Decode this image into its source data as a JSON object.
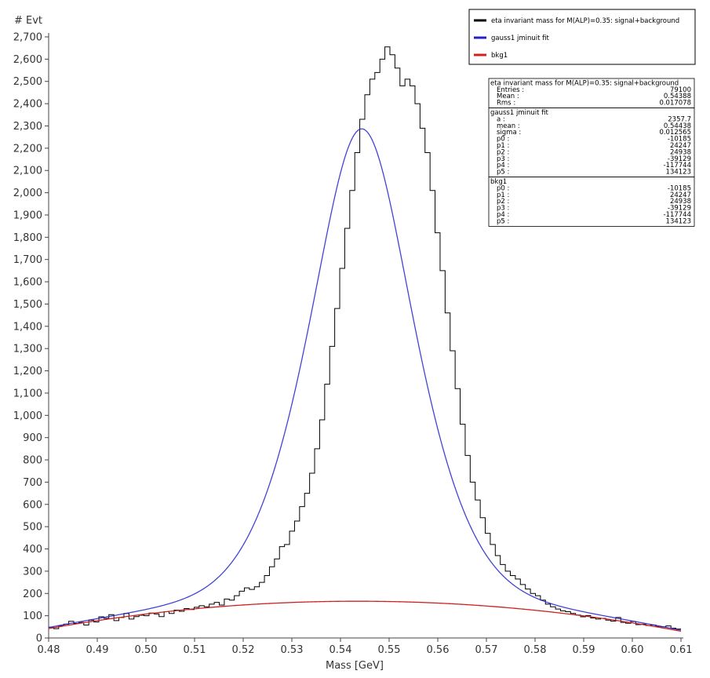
{
  "chart_data": {
    "type": "histogram",
    "title": "",
    "xlabel": "Mass   [GeV]",
    "ylabel": "# Evt",
    "xlim": [
      0.48,
      0.61
    ],
    "ylim": [
      0,
      2700
    ],
    "x_ticks": [
      0.48,
      0.49,
      0.5,
      0.51,
      0.52,
      0.53,
      0.54,
      0.55,
      0.56,
      0.57,
      0.58,
      0.59,
      0.6,
      0.61
    ],
    "x_tick_labels": [
      "0.48",
      "0.49",
      "0.50",
      "0.51",
      "0.52",
      "0.53",
      "0.54",
      "0.55",
      "0.56",
      "0.57",
      "0.58",
      "0.59",
      "0.60",
      "0.61"
    ],
    "y_ticks": [
      0,
      100,
      200,
      300,
      400,
      500,
      600,
      700,
      800,
      900,
      1000,
      1100,
      1200,
      1300,
      1400,
      1500,
      1600,
      1700,
      1800,
      1900,
      2000,
      2100,
      2200,
      2300,
      2400,
      2500,
      2600,
      2700
    ],
    "y_tick_labels": [
      "0",
      "100",
      "200",
      "300",
      "400",
      "500",
      "600",
      "700",
      "800",
      "900",
      "1,000",
      "1,100",
      "1,200",
      "1,300",
      "1,400",
      "1,500",
      "1,600",
      "1,700",
      "1,800",
      "1,900",
      "2,000",
      "2,100",
      "2,200",
      "2,300",
      "2,400",
      "2,500",
      "2,600",
      "2,700"
    ],
    "legend": {
      "placement": "top-right",
      "entries": [
        {
          "name": "eta invariant mass for M(ALP)=0.35: signal+background",
          "color": "#000000"
        },
        {
          "name": "gauss1 jminuit fit",
          "color": "#2222cc"
        },
        {
          "name": "bkg1",
          "color": "#cc2222"
        }
      ]
    },
    "series": [
      {
        "name": "eta invariant mass for M(ALP)=0.35: signal+background",
        "kind": "step",
        "color": "#000000",
        "bin_edges_start": 0.48,
        "bin_edges_end": 0.61,
        "values": [
          48,
          42,
          55,
          62,
          75,
          65,
          70,
          58,
          80,
          72,
          95,
          88,
          105,
          78,
          92,
          110,
          85,
          96,
          102,
          100,
          112,
          108,
          96,
          118,
          110,
          125,
          120,
          132,
          128,
          138,
          145,
          140,
          152,
          160,
          148,
          175,
          170,
          190,
          210,
          225,
          218,
          230,
          250,
          280,
          320,
          355,
          410,
          420,
          480,
          525,
          590,
          650,
          740,
          850,
          980,
          1140,
          1310,
          1480,
          1660,
          1840,
          2010,
          2180,
          2330,
          2440,
          2510,
          2540,
          2600,
          2655,
          2620,
          2560,
          2480,
          2510,
          2480,
          2400,
          2290,
          2180,
          2010,
          1820,
          1650,
          1460,
          1290,
          1120,
          960,
          820,
          700,
          620,
          540,
          470,
          420,
          370,
          330,
          300,
          280,
          265,
          240,
          220,
          200,
          190,
          170,
          152,
          140,
          130,
          122,
          118,
          110,
          103,
          95,
          101,
          90,
          85,
          88,
          80,
          76,
          92,
          70,
          66,
          74,
          60,
          62,
          56,
          58,
          52,
          50,
          54,
          44,
          40
        ]
      },
      {
        "name": "gauss1 jminuit fit",
        "kind": "curve",
        "color": "#2222cc"
      },
      {
        "name": "bkg1",
        "kind": "curve",
        "color": "#cc2222"
      }
    ],
    "fit_model": {
      "signal_amplitude": 2357.7,
      "signal_mean": 0.54438,
      "signal_sigma": 0.012565,
      "background_polynomial": [
        -10185,
        24247,
        24938,
        -39129,
        -117744,
        134123
      ]
    },
    "stats_box": {
      "placement": "top-right",
      "sections": [
        {
          "title": "eta invariant mass for M(ALP)=0.35: signal+background",
          "rows": [
            {
              "label": "Entries :",
              "value": "79100"
            },
            {
              "label": "Mean :",
              "value": "0.54388"
            },
            {
              "label": "Rms :",
              "value": "0.017078"
            }
          ]
        },
        {
          "title": "gauss1 jminuit fit",
          "rows": [
            {
              "label": "a :",
              "value": "2357.7"
            },
            {
              "label": "mean :",
              "value": "0.54438"
            },
            {
              "label": "sigma :",
              "value": "0.012565"
            },
            {
              "label": "p0 :",
              "value": "-10185"
            },
            {
              "label": "p1 :",
              "value": "24247"
            },
            {
              "label": "p2 :",
              "value": "24938"
            },
            {
              "label": "p3 :",
              "value": "-39129"
            },
            {
              "label": "p4 :",
              "value": "-117744"
            },
            {
              "label": "p5 :",
              "value": "134123"
            }
          ]
        },
        {
          "title": "bkg1",
          "rows": [
            {
              "label": "p0 :",
              "value": "-10185"
            },
            {
              "label": "p1 :",
              "value": "24247"
            },
            {
              "label": "p2 :",
              "value": "24938"
            },
            {
              "label": "p3 :",
              "value": "-39129"
            },
            {
              "label": "p4 :",
              "value": "-117744"
            },
            {
              "label": "p5 :",
              "value": "134123"
            }
          ]
        }
      ]
    }
  }
}
